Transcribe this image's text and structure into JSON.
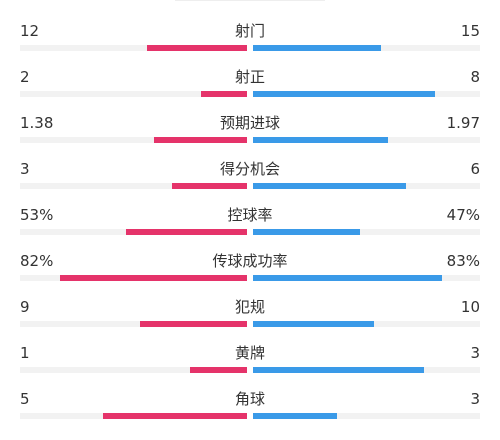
{
  "colors": {
    "home": "#e5336a",
    "away": "#3a9ae8",
    "track": "#f2f2f2"
  },
  "stats": [
    {
      "label": "射门",
      "home": "12",
      "away": "15",
      "home_ratio": 0.44,
      "away_ratio": 0.56
    },
    {
      "label": "射正",
      "home": "2",
      "away": "8",
      "home_ratio": 0.2,
      "away_ratio": 0.8
    },
    {
      "label": "预期进球",
      "home": "1.38",
      "away": "1.97",
      "home_ratio": 0.41,
      "away_ratio": 0.59
    },
    {
      "label": "得分机会",
      "home": "3",
      "away": "6",
      "home_ratio": 0.33,
      "away_ratio": 0.67
    },
    {
      "label": "控球率",
      "home": "53%",
      "away": "47%",
      "home_ratio": 0.53,
      "away_ratio": 0.47
    },
    {
      "label": "传球成功率",
      "home": "82%",
      "away": "83%",
      "home_ratio": 0.82,
      "away_ratio": 0.83
    },
    {
      "label": "犯规",
      "home": "9",
      "away": "10",
      "home_ratio": 0.47,
      "away_ratio": 0.53
    },
    {
      "label": "黄牌",
      "home": "1",
      "away": "3",
      "home_ratio": 0.25,
      "away_ratio": 0.75
    },
    {
      "label": "角球",
      "home": "5",
      "away": "3",
      "home_ratio": 0.63,
      "away_ratio": 0.37
    }
  ]
}
